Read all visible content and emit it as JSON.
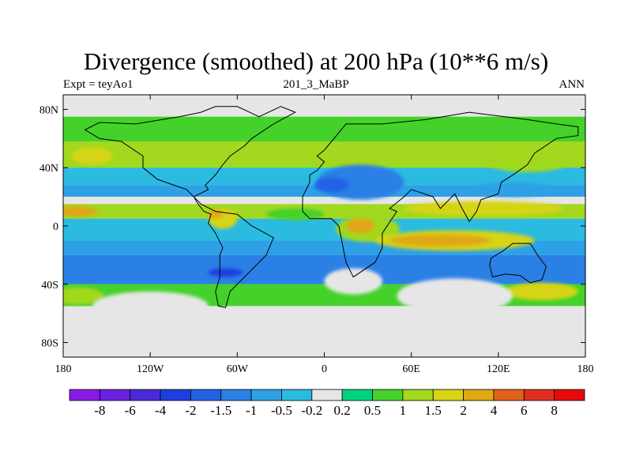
{
  "chart_data": {
    "type": "heatmap",
    "title": "Divergence (smoothed) at 200 hPa (10**6 m/s)",
    "left_label": "Expt = teyAo1",
    "center_label": "201_3_MaBP",
    "right_label": "ANN",
    "x_ticks": [
      "180",
      "120W",
      "60W",
      "0",
      "60E",
      "120E",
      "180"
    ],
    "y_ticks": [
      "80N",
      "40N",
      "0",
      "40S",
      "80S"
    ],
    "xlim": [
      -180,
      180
    ],
    "ylim": [
      -90,
      90
    ],
    "colorbar": {
      "colors": [
        "#8a1be6",
        "#6a22e0",
        "#4b2ad8",
        "#1e3fe0",
        "#2462e4",
        "#2b80e6",
        "#2ea1e6",
        "#2bbbe0",
        "#e6e6e6",
        "#00d27e",
        "#44d22a",
        "#a2d81e",
        "#d6d414",
        "#e0a812",
        "#e0621a",
        "#e02e1e",
        "#e60a0a"
      ],
      "labels": [
        "-8",
        "-6",
        "-4",
        "-2",
        "-1.5",
        "-1",
        "-0.5",
        "-0.2",
        "0.2",
        "0.5",
        "1",
        "1.5",
        "2",
        "4",
        "6",
        "8"
      ]
    },
    "bands": [
      {
        "lat_top": 90,
        "lat_bottom": 75,
        "value": -0.2
      },
      {
        "lat_top": 75,
        "lat_bottom": 58,
        "value": 0.5
      },
      {
        "lat_top": 58,
        "lat_bottom": 40,
        "value": 1.0
      },
      {
        "lat_top": 40,
        "lat_bottom": 28,
        "value": -0.5
      },
      {
        "lat_top": 28,
        "lat_bottom": 20,
        "value": -1.0
      },
      {
        "lat_top": 20,
        "lat_bottom": 15,
        "value": 0.1
      },
      {
        "lat_top": 15,
        "lat_bottom": 5,
        "value": 1.2
      },
      {
        "lat_top": 5,
        "lat_bottom": -10,
        "value": -0.5
      },
      {
        "lat_top": -10,
        "lat_bottom": -20,
        "value": -1.0
      },
      {
        "lat_top": -20,
        "lat_bottom": -40,
        "value": -1.5
      },
      {
        "lat_top": -40,
        "lat_bottom": -55,
        "value": 0.6
      },
      {
        "lat_top": -55,
        "lat_bottom": -65,
        "value": 0.1
      },
      {
        "lat_top": -65,
        "lat_bottom": -90,
        "value": -0.1
      }
    ],
    "features": [
      {
        "lon": -170,
        "lat": 10,
        "rx": 14,
        "ry": 3.5,
        "value": 2.5
      },
      {
        "lon": -160,
        "lat": 48,
        "rx": 14,
        "ry": 6,
        "value": 1.5
      },
      {
        "lon": -70,
        "lat": 5,
        "rx": 10,
        "ry": 7,
        "value": 1.5
      },
      {
        "lon": -75,
        "lat": 8,
        "rx": 5,
        "ry": 3,
        "value": 2.5
      },
      {
        "lon": -20,
        "lat": 8,
        "rx": 20,
        "ry": 4,
        "value": 0.6
      },
      {
        "lon": 25,
        "lat": 30,
        "rx": 30,
        "ry": 12,
        "value": -1.2
      },
      {
        "lon": 5,
        "lat": 28,
        "rx": 12,
        "ry": 5,
        "value": -1.6
      },
      {
        "lon": 30,
        "lat": -2,
        "rx": 22,
        "ry": 9,
        "value": 1.2
      },
      {
        "lon": 25,
        "lat": 0,
        "rx": 10,
        "ry": 5,
        "value": 2.5
      },
      {
        "lon": 90,
        "lat": -10,
        "rx": 55,
        "ry": 7,
        "value": 1.5
      },
      {
        "lon": 80,
        "lat": -10,
        "rx": 35,
        "ry": 4,
        "value": 2.5
      },
      {
        "lon": 110,
        "lat": 12,
        "rx": 55,
        "ry": 5,
        "value": 1.5
      },
      {
        "lon": 140,
        "lat": 45,
        "rx": 30,
        "ry": 8,
        "value": 1.2
      },
      {
        "lon": 130,
        "lat": 25,
        "rx": 30,
        "ry": 5,
        "value": -0.6
      },
      {
        "lon": -80,
        "lat": -30,
        "rx": 25,
        "ry": 7,
        "value": -1.5
      },
      {
        "lon": -68,
        "lat": -32,
        "rx": 12,
        "ry": 3,
        "value": -2.5
      },
      {
        "lon": 150,
        "lat": -45,
        "rx": 25,
        "ry": 6,
        "value": 1.5
      },
      {
        "lon": -170,
        "lat": -48,
        "rx": 18,
        "ry": 6,
        "value": 1.2
      },
      {
        "lon": 20,
        "lat": -38,
        "rx": 20,
        "ry": 9,
        "value": 0.1
      },
      {
        "lon": 90,
        "lat": -48,
        "rx": 40,
        "ry": 12,
        "value": 0.1
      },
      {
        "lon": -120,
        "lat": -55,
        "rx": 40,
        "ry": 10,
        "value": 0.1
      }
    ],
    "coastlines": [
      {
        "name": "americas",
        "points": [
          [
            -100,
            75
          ],
          [
            -85,
            78
          ],
          [
            -75,
            82
          ],
          [
            -60,
            82
          ],
          [
            -45,
            75
          ],
          [
            -30,
            82
          ],
          [
            -20,
            78
          ],
          [
            -35,
            70
          ],
          [
            -50,
            60
          ],
          [
            -55,
            55
          ],
          [
            -65,
            48
          ],
          [
            -70,
            42
          ],
          [
            -75,
            35
          ],
          [
            -82,
            28
          ],
          [
            -80,
            25
          ],
          [
            -90,
            20
          ],
          [
            -87,
            15
          ],
          [
            -83,
            10
          ],
          [
            -78,
            8
          ],
          [
            -80,
            2
          ],
          [
            -75,
            -5
          ],
          [
            -70,
            -15
          ],
          [
            -72,
            -20
          ],
          [
            -72,
            -35
          ],
          [
            -75,
            -45
          ],
          [
            -73,
            -55
          ],
          [
            -68,
            -56
          ],
          [
            -65,
            -45
          ],
          [
            -58,
            -38
          ],
          [
            -48,
            -28
          ],
          [
            -40,
            -20
          ],
          [
            -35,
            -8
          ],
          [
            -50,
            0
          ],
          [
            -60,
            8
          ],
          [
            -75,
            10
          ],
          [
            -85,
            15
          ],
          [
            -95,
            25
          ],
          [
            -115,
            32
          ],
          [
            -125,
            40
          ],
          [
            -125,
            48
          ],
          [
            -140,
            58
          ],
          [
            -155,
            60
          ],
          [
            -165,
            66
          ],
          [
            -155,
            71
          ],
          [
            -130,
            70
          ],
          [
            -100,
            75
          ]
        ]
      },
      {
        "name": "eurafrica",
        "points": [
          [
            -10,
            35
          ],
          [
            -5,
            38
          ],
          [
            0,
            44
          ],
          [
            -5,
            48
          ],
          [
            0,
            52
          ],
          [
            5,
            58
          ],
          [
            15,
            70
          ],
          [
            40,
            70
          ],
          [
            70,
            73
          ],
          [
            100,
            78
          ],
          [
            140,
            73
          ],
          [
            160,
            70
          ],
          [
            175,
            68
          ],
          [
            175,
            62
          ],
          [
            160,
            60
          ],
          [
            145,
            50
          ],
          [
            140,
            42
          ],
          [
            130,
            35
          ],
          [
            122,
            30
          ],
          [
            120,
            22
          ],
          [
            108,
            18
          ],
          [
            105,
            10
          ],
          [
            100,
            3
          ],
          [
            95,
            12
          ],
          [
            90,
            22
          ],
          [
            80,
            12
          ],
          [
            75,
            20
          ],
          [
            60,
            25
          ],
          [
            55,
            20
          ],
          [
            45,
            12
          ],
          [
            50,
            10
          ],
          [
            40,
            -5
          ],
          [
            40,
            -15
          ],
          [
            35,
            -25
          ],
          [
            20,
            -35
          ],
          [
            15,
            -25
          ],
          [
            12,
            -10
          ],
          [
            10,
            0
          ],
          [
            5,
            5
          ],
          [
            -10,
            5
          ],
          [
            -15,
            10
          ],
          [
            -15,
            20
          ],
          [
            -10,
            30
          ],
          [
            -10,
            35
          ]
        ]
      },
      {
        "name": "australia",
        "points": [
          [
            115,
            -22
          ],
          [
            122,
            -18
          ],
          [
            130,
            -12
          ],
          [
            135,
            -12
          ],
          [
            142,
            -12
          ],
          [
            147,
            -20
          ],
          [
            153,
            -28
          ],
          [
            150,
            -37
          ],
          [
            142,
            -39
          ],
          [
            135,
            -34
          ],
          [
            125,
            -33
          ],
          [
            116,
            -35
          ],
          [
            114,
            -27
          ],
          [
            115,
            -22
          ]
        ]
      }
    ]
  }
}
